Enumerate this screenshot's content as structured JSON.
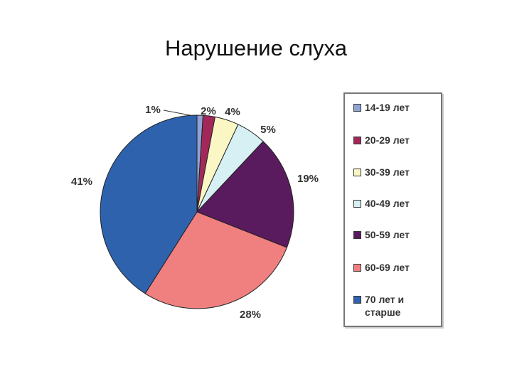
{
  "chart_data": {
    "type": "pie",
    "title": "Нарушение слуха",
    "categories": [
      "14-19 лет",
      "20-29 лет",
      "30-39 лет",
      "40-49 лет",
      "50-59 лет",
      "60-69 лет",
      "70 лет и старше"
    ],
    "values": [
      1,
      2,
      4,
      5,
      19,
      28,
      41
    ],
    "value_labels": [
      "1%",
      "2%",
      "4%",
      "5%",
      "19%",
      "28%",
      "41%"
    ],
    "colors": [
      "#8fa3d6",
      "#a3285a",
      "#fbf7c4",
      "#d6f0f4",
      "#5a1a5e",
      "#f08080",
      "#2e62ad"
    ]
  }
}
